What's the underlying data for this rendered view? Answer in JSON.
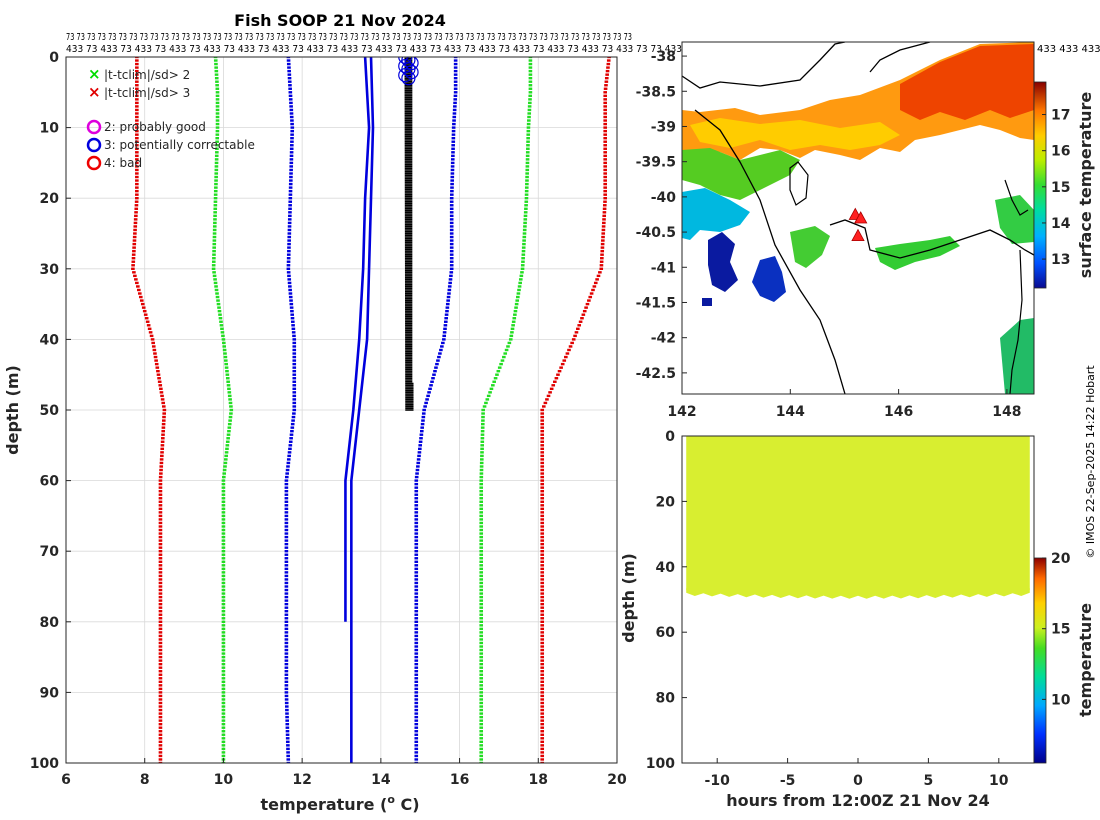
{
  "title": "Fish SOOP 21 Nov 2024",
  "credit": "© IMOS 22-Sep-2025 14:22 Hobart",
  "header_labels": {
    "row1": "73 73 73 73 73 73 73 73 73 73 73 73 73 73 73 73 73 73 73 73 73 73 73 73 73 73 73 73 73 73 73 73 73 73 73 73 73 73 73 73 73 73 73 73 73 73 73 73 73 73 73 73 73 73",
    "row2": "433 73 433 73 433 73 433 73 433 73 433 73 433 73 433 73 433 73 433 73 433 73 433 73 433 73 433 73 433 73 433 73 433 73 73 433",
    "map_row": "433 433 433"
  },
  "legend": {
    "items": [
      {
        "marker": "x",
        "color": "#00dd00",
        "label": "|t-tclim|/sd> 2"
      },
      {
        "marker": "x",
        "color": "#e00000",
        "label": "|t-tclim|/sd> 3"
      },
      {
        "marker": "o",
        "color": "#dd00dd",
        "label": "2: probably good"
      },
      {
        "marker": "o",
        "color": "#0000dd",
        "label": "3: potentially correctable"
      },
      {
        "marker": "o",
        "color": "#ee0000",
        "label": "4: bad"
      }
    ]
  },
  "chart_data": [
    {
      "type": "line",
      "name": "profile",
      "xlabel": "temperature (o C)",
      "xlabel_main": "temperature (",
      "xlabel_sup": "o",
      "xlabel_end": " C)",
      "ylabel": "depth (m)",
      "xlim": [
        6,
        20
      ],
      "ylim": [
        0,
        100
      ],
      "xticks": [
        6,
        8,
        10,
        12,
        14,
        16,
        18,
        20
      ],
      "yticks": [
        0,
        10,
        20,
        30,
        40,
        50,
        60,
        70,
        80,
        90,
        100
      ],
      "depths": [
        0,
        5,
        10,
        20,
        30,
        40,
        50,
        60,
        70,
        80,
        90,
        100
      ],
      "series": [
        {
          "name": "clim-3sd",
          "color": "#e00000",
          "style": "dots",
          "values": [
            7.8,
            7.8,
            7.8,
            7.8,
            7.7,
            8.2,
            8.5,
            8.4,
            8.4,
            8.4,
            8.4,
            8.4
          ]
        },
        {
          "name": "clim-2sd",
          "color": "#22dd22",
          "style": "dots",
          "values": [
            9.8,
            9.85,
            9.85,
            9.8,
            9.75,
            10.0,
            10.2,
            10.0,
            10.0,
            10.0,
            10.0,
            10.0
          ]
        },
        {
          "name": "clim-1sd",
          "color": "#0000dd",
          "style": "dots",
          "values": [
            11.65,
            11.7,
            11.75,
            11.7,
            11.65,
            11.8,
            11.8,
            11.6,
            11.6,
            11.6,
            11.6,
            11.65
          ]
        },
        {
          "name": "clim+1sd",
          "color": "#0000dd",
          "style": "dots",
          "values": [
            15.9,
            15.9,
            15.85,
            15.8,
            15.8,
            15.6,
            15.1,
            14.9,
            14.9,
            14.9,
            14.9,
            14.9
          ]
        },
        {
          "name": "clim+2sd",
          "color": "#22dd22",
          "style": "dots",
          "values": [
            17.8,
            17.8,
            17.75,
            17.7,
            17.6,
            17.3,
            16.6,
            16.55,
            16.55,
            16.55,
            16.55,
            16.55
          ]
        },
        {
          "name": "clim+3sd",
          "color": "#e00000",
          "style": "dots",
          "values": [
            19.8,
            19.7,
            19.7,
            19.7,
            19.6,
            18.9,
            18.1,
            18.1,
            18.1,
            18.1,
            18.1,
            18.1
          ]
        }
      ],
      "clim_mean": {
        "color": "#0000dd",
        "depths": [
          0,
          10,
          20,
          30,
          40,
          50,
          60,
          70,
          80,
          90,
          100
        ],
        "values": [
          13.75,
          13.8,
          13.75,
          13.7,
          13.65,
          13.45,
          13.25,
          13.25,
          13.25,
          13.25,
          13.25
        ]
      },
      "second_mean": {
        "color": "#0000dd",
        "depths": [
          0,
          10,
          20,
          30,
          40,
          50,
          60,
          70,
          80
        ],
        "values": [
          13.6,
          13.7,
          13.6,
          13.55,
          13.45,
          13.3,
          13.1,
          13.1,
          13.1
        ]
      },
      "observed": {
        "color": "#000000",
        "depth_range": [
          0,
          50
        ],
        "temp_range": [
          14.6,
          14.8
        ]
      },
      "flag_circles": {
        "color": "#0000dd",
        "temp": 14.7,
        "depth_range": [
          0,
          3
        ]
      }
    },
    {
      "type": "heatmap",
      "name": "sst-map",
      "xlim": [
        142,
        148.5
      ],
      "ylim": [
        -42.8,
        -37.8
      ],
      "xticks": [
        142,
        144,
        146,
        148
      ],
      "yticks": [
        -38,
        -38.5,
        -39,
        -39.5,
        -40,
        -40.5,
        -41,
        -41.5,
        -42,
        -42.5
      ],
      "colorbar_label": "surface temperature",
      "colorbar_ticks": [
        13,
        14,
        15,
        16,
        17
      ],
      "colorbar_range": [
        12.2,
        17.9
      ],
      "track": [
        [
          145.2,
          -40.25
        ],
        [
          145.3,
          -40.3
        ],
        [
          145.25,
          -40.55
        ]
      ]
    },
    {
      "type": "heatmap",
      "name": "time-depth",
      "xlabel": "hours from 12:00Z 21 Nov 24",
      "ylabel": "depth (m)",
      "xlim": [
        -12.5,
        12.5
      ],
      "ylim": [
        0,
        100
      ],
      "xticks": [
        -10,
        -5,
        0,
        5,
        10
      ],
      "yticks": [
        0,
        20,
        40,
        60,
        80,
        100
      ],
      "colorbar_label": "temperature",
      "colorbar_ticks": [
        10,
        15,
        20
      ],
      "colorbar_range": [
        5.5,
        20
      ],
      "value": 14.7,
      "max_depth": 49
    }
  ]
}
